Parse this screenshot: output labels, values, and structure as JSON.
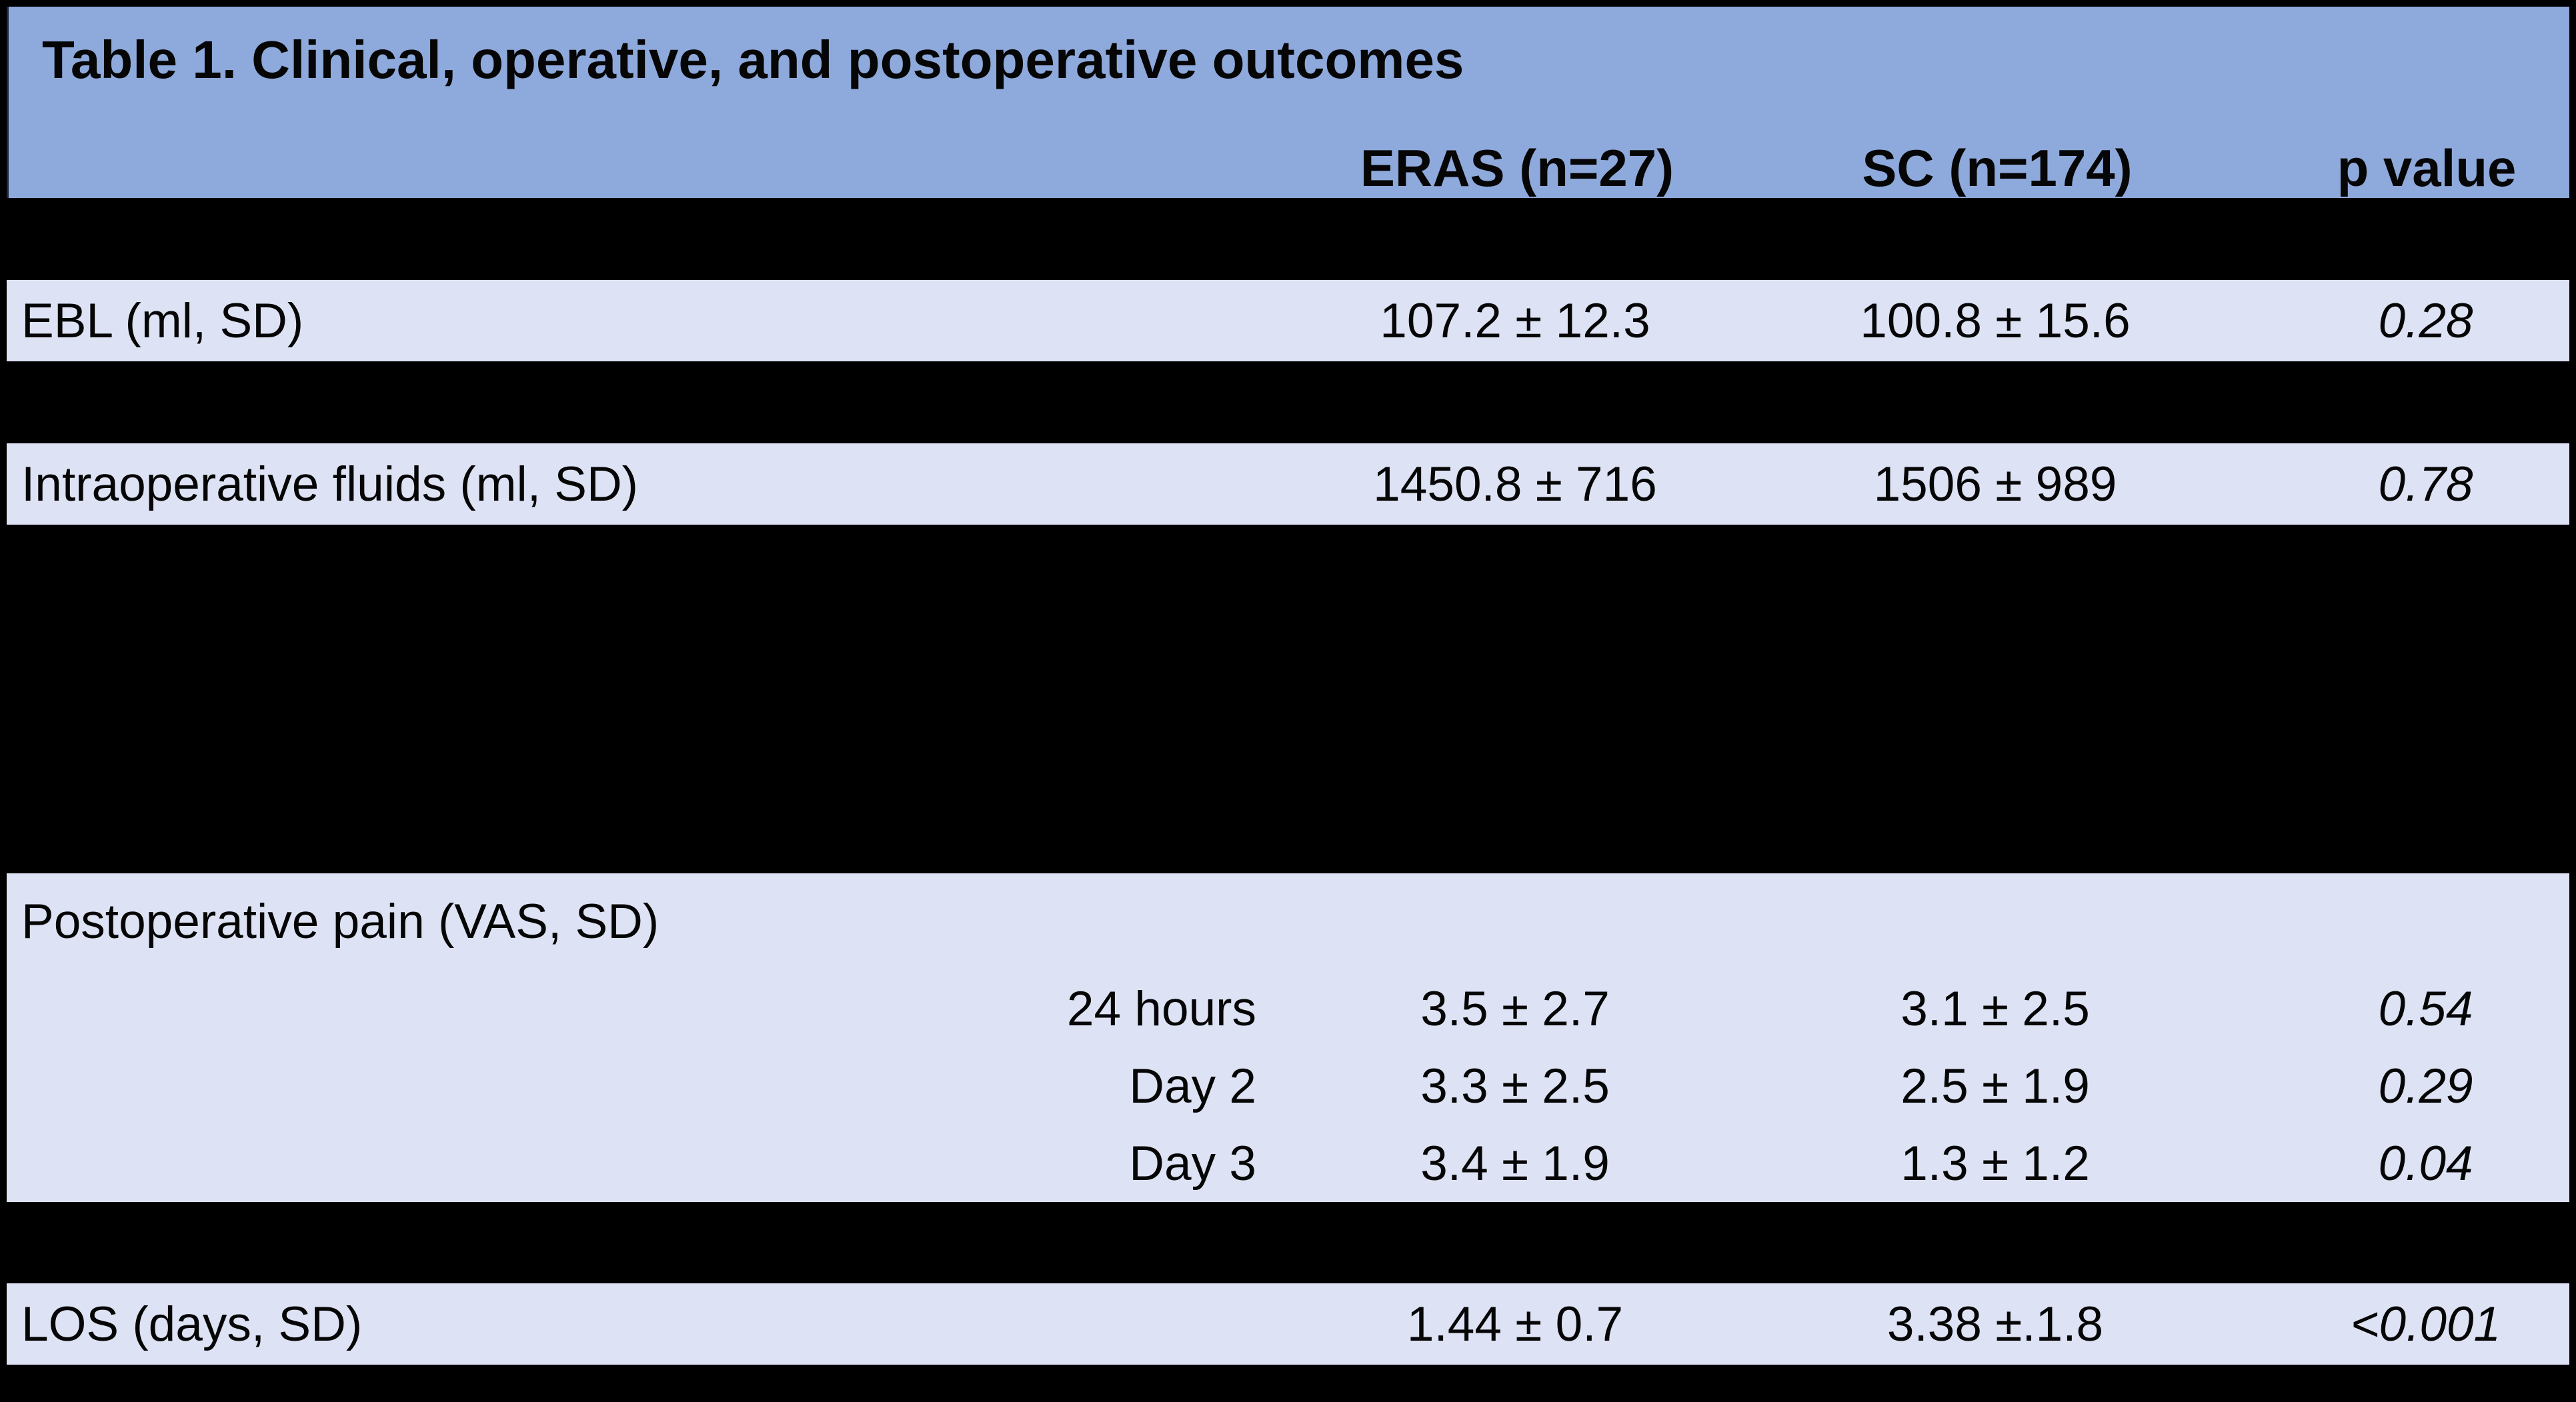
{
  "table": {
    "title": "Table 1. Clinical, operative, and postoperative outcomes",
    "header": {
      "eras": "ERAS (n=27)",
      "sc": "SC (n=174)",
      "p": "p value"
    },
    "rows": [
      {
        "label": "EBL (ml, SD)",
        "eras": "107.2 ± 12.3",
        "sc": "100.8 ± 15.6",
        "p": "0.28"
      },
      {
        "label": "Intraoperative fluids (ml, SD)",
        "eras": "1450.8 ± 716",
        "sc": "1506 ± 989",
        "p": "0.78"
      },
      {
        "label": "Postoperative pain (VAS, SD)"
      },
      {
        "label": "24 hours",
        "eras": "3.5 ± 2.7",
        "sc": "3.1 ± 2.5",
        "p": "0.54"
      },
      {
        "label": "Day 2",
        "eras": "3.3 ± 2.5",
        "sc": "2.5 ± 1.9",
        "p": "0.29"
      },
      {
        "label": "Day 3",
        "eras": "3.4 ± 1.9",
        "sc": "1.3 ± 1.2",
        "p": "0.04"
      },
      {
        "label": "LOS (days, SD)",
        "eras": "1.44 ± 0.7",
        "sc": "3.38 ±.1.8",
        "p": "<0.001"
      }
    ],
    "colors": {
      "header_bg": "#8EA9DB",
      "row_bg": "#DDE2F4",
      "gap_bg": "#000000",
      "text": "#060606"
    }
  },
  "chart_data": {
    "type": "table",
    "title": "Table 1. Clinical, operative, and postoperative outcomes",
    "columns": [
      "",
      "ERAS (n=27)",
      "SC (n=174)",
      "p value"
    ],
    "rows": [
      [
        "EBL (ml, SD)",
        "107.2 ± 12.3",
        "100.8 ± 15.6",
        "0.28"
      ],
      [
        "Intraoperative fluids (ml, SD)",
        "1450.8 ± 716",
        "1506 ± 989",
        "0.78"
      ],
      [
        "Postoperative pain (VAS, SD)",
        "",
        "",
        ""
      ],
      [
        "24 hours",
        "3.5 ± 2.7",
        "3.1 ± 2.5",
        "0.54"
      ],
      [
        "Day 2",
        "3.3 ± 2.5",
        "2.5 ± 1.9",
        "0.29"
      ],
      [
        "Day 3",
        "3.4 ± 1.9",
        "1.3 ± 1.2",
        "0.04"
      ],
      [
        "LOS (days, SD)",
        "1.44 ± 0.7",
        "3.38 ±.1.8",
        "<0.001"
      ]
    ]
  }
}
